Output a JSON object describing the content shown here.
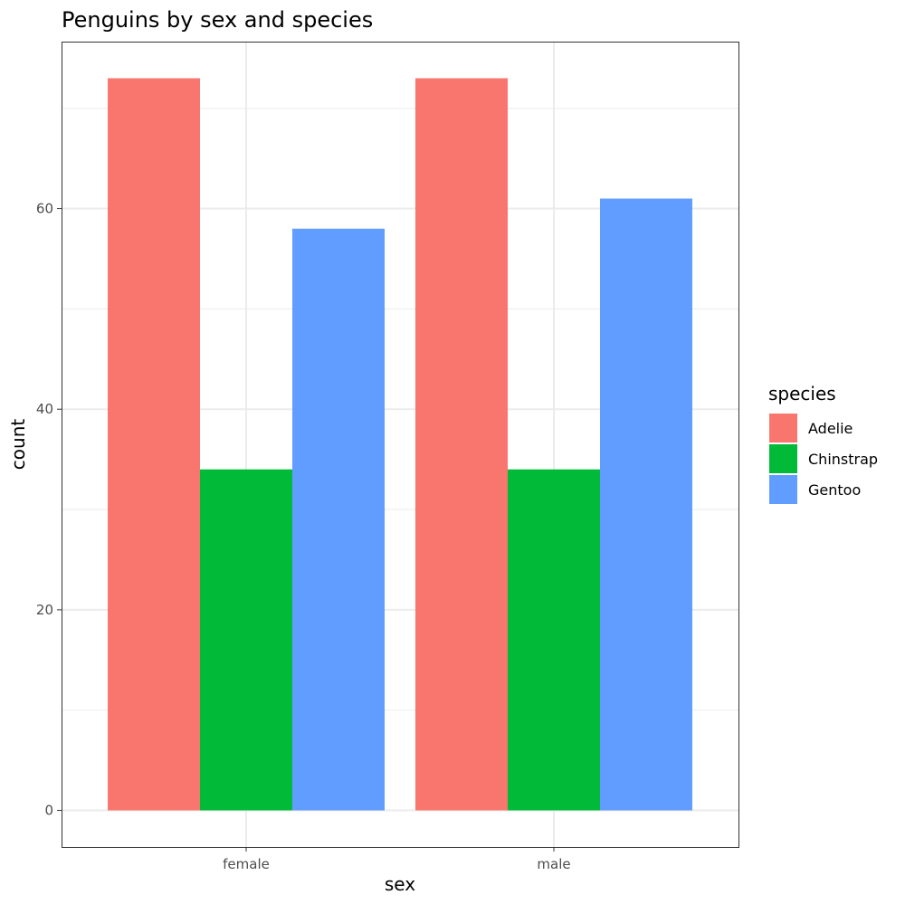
{
  "chart_data": {
    "type": "bar",
    "title": "Penguins by sex and species",
    "xlabel": "sex",
    "ylabel": "count",
    "categories": [
      "female",
      "male"
    ],
    "series": [
      {
        "name": "Adelie",
        "values": [
          73,
          73
        ],
        "color": "#F8766D"
      },
      {
        "name": "Chinstrap",
        "values": [
          34,
          34
        ],
        "color": "#00BA38"
      },
      {
        "name": "Gentoo",
        "values": [
          58,
          61
        ],
        "color": "#619CFF"
      }
    ],
    "ylim": [
      -3.65,
      76.65
    ],
    "y_ticks": [
      0,
      20,
      40,
      60
    ],
    "legend_title": "species",
    "legend_position": "right",
    "grid": true,
    "theme": "bw"
  }
}
